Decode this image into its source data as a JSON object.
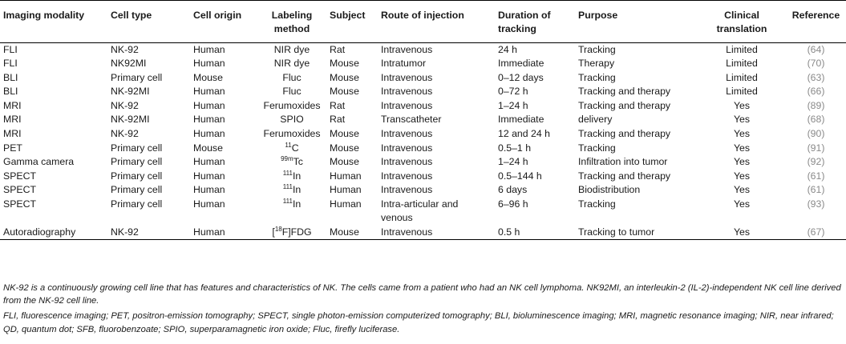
{
  "headers": {
    "modality": "Imaging modality",
    "cell_type": "Cell type",
    "cell_origin": "Cell origin",
    "labeling": "Labeling method",
    "subject": "Subject",
    "route": "Route of injection",
    "duration": "Duration of tracking",
    "purpose": "Purpose",
    "clinical": "Clinical translation",
    "reference": "Reference"
  },
  "rows": [
    {
      "modality": "FLI",
      "cell_type": "NK-92",
      "origin": "Human",
      "label_pre": "",
      "label_sup": "",
      "label_post": "NIR dye",
      "subject": "Rat",
      "route": "Intravenous",
      "duration": "24 h",
      "purpose": "Tracking",
      "clinical": "Limited",
      "ref": "(64)"
    },
    {
      "modality": "FLI",
      "cell_type": "NK92MI",
      "origin": "Human",
      "label_pre": "",
      "label_sup": "",
      "label_post": "NIR dye",
      "subject": "Mouse",
      "route": "Intratumor",
      "duration": "Immediate",
      "purpose": "Therapy",
      "clinical": "Limited",
      "ref": "(70)"
    },
    {
      "modality": "BLI",
      "cell_type": "Primary cell",
      "origin": "Mouse",
      "label_pre": "",
      "label_sup": "",
      "label_post": "Fluc",
      "subject": "Mouse",
      "route": "Intravenous",
      "duration": "0–12 days",
      "purpose": "Tracking",
      "clinical": "Limited",
      "ref": "(63)"
    },
    {
      "modality": "BLI",
      "cell_type": "NK-92MI",
      "origin": "Human",
      "label_pre": "",
      "label_sup": "",
      "label_post": "Fluc",
      "subject": "Mouse",
      "route": "Intravenous",
      "duration": "0–72 h",
      "purpose": "Tracking and therapy",
      "clinical": "Limited",
      "ref": "(66)"
    },
    {
      "modality": "MRI",
      "cell_type": "NK-92",
      "origin": "Human",
      "label_pre": "",
      "label_sup": "",
      "label_post": "Ferumoxides",
      "subject": "Rat",
      "route": "Intravenous",
      "duration": "1–24 h",
      "purpose": "Tracking and therapy",
      "clinical": "Yes",
      "ref": "(89)"
    },
    {
      "modality": "MRI",
      "cell_type": "NK-92MI",
      "origin": "Human",
      "label_pre": "",
      "label_sup": "",
      "label_post": "SPIO",
      "subject": "Rat",
      "route": "Transcatheter",
      "duration": "Immediate",
      "purpose": "delivery",
      "clinical": "Yes",
      "ref": "(68)"
    },
    {
      "modality": "MRI",
      "cell_type": "NK-92",
      "origin": "Human",
      "label_pre": "",
      "label_sup": "",
      "label_post": "Ferumoxides",
      "subject": "Mouse",
      "route": "Intravenous",
      "duration": "12 and 24 h",
      "purpose": "Tracking and therapy",
      "clinical": "Yes",
      "ref": "(90)"
    },
    {
      "modality": "PET",
      "cell_type": "Primary cell",
      "origin": "Mouse",
      "label_pre": "",
      "label_sup": "11",
      "label_post": "C",
      "subject": "Mouse",
      "route": "Intravenous",
      "duration": "0.5–1 h",
      "purpose": "Tracking",
      "clinical": "Yes",
      "ref": "(91)"
    },
    {
      "modality": "Gamma camera",
      "cell_type": "Primary cell",
      "origin": "Human",
      "label_pre": "",
      "label_sup": "99m",
      "label_post": "Tc",
      "subject": "Mouse",
      "route": "Intravenous",
      "duration": "1–24 h",
      "purpose": "Infiltration into tumor",
      "clinical": "Yes",
      "ref": "(92)"
    },
    {
      "modality": "SPECT",
      "cell_type": "Primary cell",
      "origin": "Human",
      "label_pre": "",
      "label_sup": "111",
      "label_post": "In",
      "subject": "Human",
      "route": "Intravenous",
      "duration": "0.5–144 h",
      "purpose": "Tracking and therapy",
      "clinical": "Yes",
      "ref": "(61)"
    },
    {
      "modality": "SPECT",
      "cell_type": "Primary cell",
      "origin": "Human",
      "label_pre": "",
      "label_sup": "111",
      "label_post": "In",
      "subject": "Human",
      "route": "Intravenous",
      "duration": "6 days",
      "purpose": "Biodistribution",
      "clinical": "Yes",
      "ref": "(61)"
    },
    {
      "modality": "SPECT",
      "cell_type": "Primary cell",
      "origin": "Human",
      "label_pre": "",
      "label_sup": "111",
      "label_post": "In",
      "subject": "Human",
      "route": "Intra-articular and",
      "route2": "venous",
      "duration": "6–96 h",
      "purpose": "Tracking",
      "clinical": "Yes",
      "ref": "(93)"
    },
    {
      "modality": "Autoradiography",
      "cell_type": "NK-92",
      "origin": "Human",
      "label_pre": "[",
      "label_sup": "18",
      "label_post": "F]FDG",
      "subject": "Mouse",
      "route": "Intravenous",
      "duration": "0.5 h",
      "purpose": "Tracking to tumor",
      "clinical": "Yes",
      "ref": "(67)"
    }
  ],
  "notes": {
    "note1": "NK-92 is a continuously growing cell line that has features and characteristics of NK. The cells came from a patient who had an NK cell lymphoma. NK92MI, an interleukin-2 (IL-2)-independent NK cell line derived from the NK-92 cell line.",
    "abbreviations": "FLI, fluorescence imaging; PET, positron-emission tomography; SPECT, single photon-emission computerized tomography; BLI, bioluminescence imaging; MRI, magnetic resonance imaging; NIR, near infrared; QD, quantum dot; SFB, fluorobenzoate; SPIO, superparamagnetic iron oxide; Fluc, firefly luciferase."
  }
}
